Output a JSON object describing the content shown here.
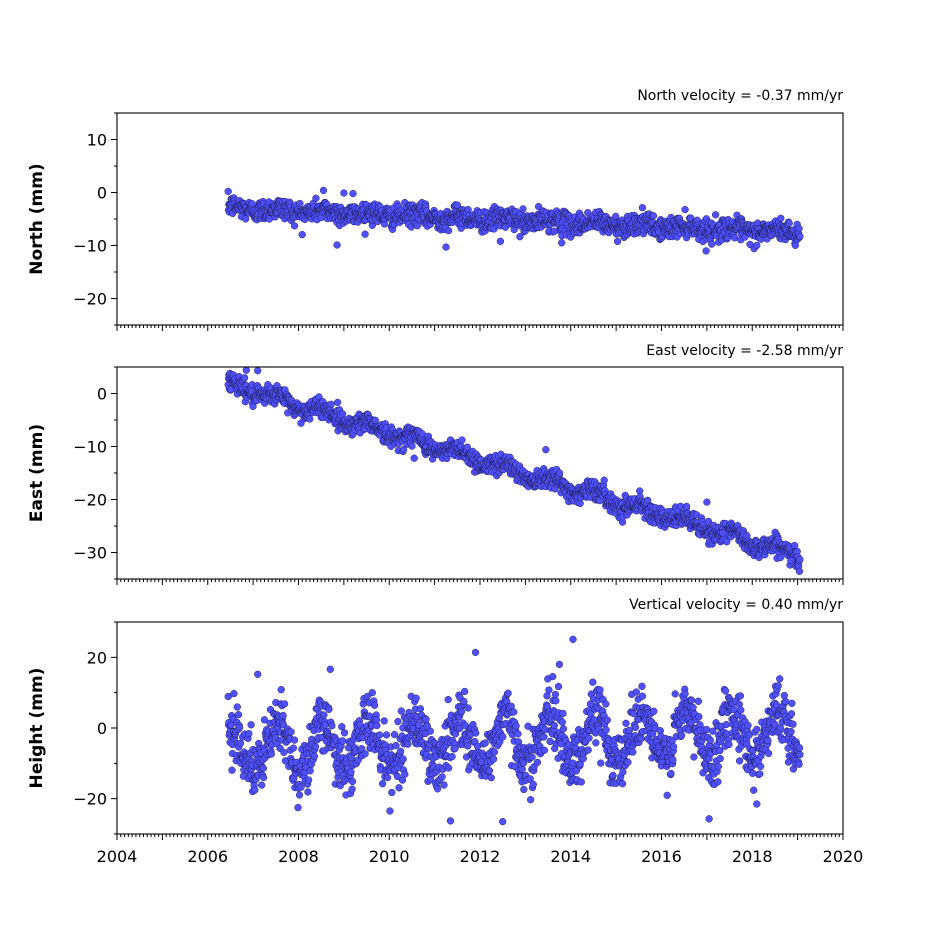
{
  "chart_data": [
    {
      "type": "scatter",
      "title": "North velocity = -0.37 mm/yr",
      "ylabel": "North (mm)",
      "xlim": [
        2004,
        2020
      ],
      "ylim": [
        -25,
        15
      ],
      "yticks": [
        -20,
        -10,
        0,
        10
      ],
      "ytick_labels": [
        "−20",
        "−10",
        "0",
        "10"
      ],
      "x_tick_labels_visible": false,
      "marker_color": "#5050ff",
      "edge_color": "#1a1a4a",
      "series": {
        "x_start": 2006.45,
        "x_end": 2019.05,
        "offset": -2.9,
        "velocity": -0.37,
        "seasonal_amplitude": 0.4,
        "noise": 1.0,
        "outliers": [
          [
            2008.55,
            0.4
          ],
          [
            2008.85,
            -9.9
          ],
          [
            2009.0,
            -0.1
          ],
          [
            2009.2,
            -0.2
          ],
          [
            2011.25,
            -10.3
          ],
          [
            2012.45,
            -9.2
          ],
          [
            2013.8,
            -9.5
          ],
          [
            2017.95,
            -9.8
          ]
        ]
      }
    },
    {
      "type": "scatter",
      "title": "East velocity = -2.58 mm/yr",
      "ylabel": "East (mm)",
      "xlim": [
        2004,
        2020
      ],
      "ylim": [
        -35,
        5
      ],
      "yticks": [
        -30,
        -20,
        -10,
        0
      ],
      "ytick_labels": [
        "−30",
        "−20",
        "−10",
        "0"
      ],
      "x_tick_labels_visible": false,
      "marker_color": "#5050ff",
      "edge_color": "#1a1a4a",
      "series": {
        "x_start": 2006.45,
        "x_end": 2019.05,
        "offset": 1.8,
        "velocity": -2.58,
        "seasonal_amplitude": 0.9,
        "noise": 0.9,
        "outliers": [
          [
            2006.85,
            4.4
          ],
          [
            2007.1,
            4.3
          ],
          [
            2010.55,
            -12.2
          ],
          [
            2013.45,
            -10.6
          ],
          [
            2017.0,
            -20.5
          ],
          [
            2017.35,
            -26.3
          ],
          [
            2018.85,
            -31.5
          ]
        ]
      }
    },
    {
      "type": "scatter",
      "title": "Vertical velocity = 0.40 mm/yr",
      "ylabel": "Height (mm)",
      "xlim": [
        2004,
        2020
      ],
      "ylim": [
        -30,
        30
      ],
      "yticks": [
        -20,
        0,
        20
      ],
      "ytick_labels": [
        "−20",
        "0",
        "20"
      ],
      "x_ticks": [
        2004,
        2006,
        2008,
        2010,
        2012,
        2014,
        2016,
        2018,
        2020
      ],
      "x_tick_labels": [
        "2004",
        "2006",
        "2008",
        "2010",
        "2012",
        "2014",
        "2016",
        "2018",
        "2020"
      ],
      "x_tick_labels_visible": true,
      "marker_color": "#5050ff",
      "edge_color": "#1a1a4a",
      "series": {
        "x_start": 2006.45,
        "x_end": 2019.05,
        "offset": -6.0,
        "velocity": 0.4,
        "seasonal_amplitude": 6.5,
        "noise": 4.2,
        "outliers": [
          [
            2007.1,
            15.2
          ],
          [
            2008.7,
            16.6
          ],
          [
            2011.35,
            -26.3
          ],
          [
            2011.9,
            21.4
          ],
          [
            2012.5,
            -26.5
          ],
          [
            2013.75,
            18.0
          ],
          [
            2014.05,
            25.1
          ],
          [
            2017.05,
            -25.7
          ],
          [
            2018.1,
            -21.5
          ]
        ]
      }
    }
  ]
}
